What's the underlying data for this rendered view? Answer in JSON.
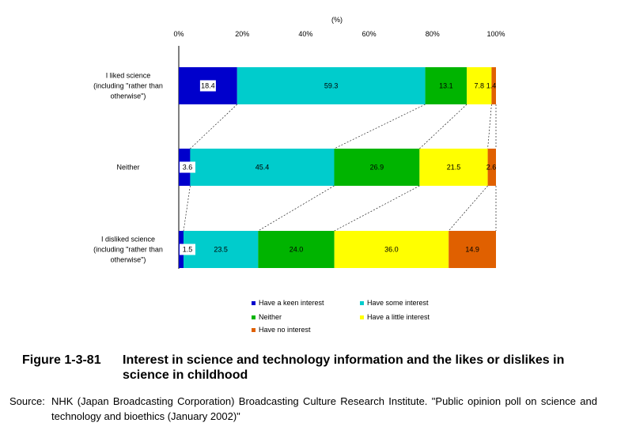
{
  "chart_data": {
    "type": "bar",
    "orientation": "horizontal",
    "stacked": "percent",
    "unit_label": "(%)",
    "xlim": [
      0,
      100
    ],
    "x_ticks": [
      "0%",
      "20%",
      "40%",
      "60%",
      "80%",
      "100%"
    ],
    "grid": false,
    "legend_position": "bottom",
    "categories": [
      [
        "I liked science",
        "(including \"rather than",
        "otherwise\")"
      ],
      [
        "Neither"
      ],
      [
        "I disliked science",
        "(including \"rather than",
        "otherwise\")"
      ]
    ],
    "series": [
      {
        "name": "Have a keen interest",
        "color": "#0000cc",
        "values": [
          18.4,
          3.6,
          1.5
        ]
      },
      {
        "name": "Have some interest",
        "color": "#00cccc",
        "values": [
          59.3,
          45.4,
          23.5
        ]
      },
      {
        "name": "Neither",
        "color": "#00b400",
        "values": [
          13.1,
          26.9,
          24.0
        ]
      },
      {
        "name": "Have a little interest",
        "color": "#ffff00",
        "values": [
          7.8,
          21.5,
          36.0
        ]
      },
      {
        "name": "Have no interest",
        "color": "#e06000",
        "values": [
          1.4,
          2.6,
          14.9
        ]
      }
    ],
    "data_labels": [
      [
        "18.4",
        "59.3",
        "13.1",
        "7.8",
        "1.4"
      ],
      [
        "3.6",
        "45.4",
        "26.9",
        "21.5",
        "2.6"
      ],
      [
        "1.5",
        "23.5",
        "24.0",
        "36.0",
        "14.9"
      ]
    ]
  },
  "figure": {
    "number": "Figure 1-3-81",
    "title": "Interest in science and technology information and the likes or dislikes in science in childhood"
  },
  "source": {
    "lead": "Source:",
    "text": "NHK (Japan Broadcasting Corporation) Broadcasting Culture Research Institute. \"Public opinion poll on science and technology and bioethics (January 2002)\""
  }
}
